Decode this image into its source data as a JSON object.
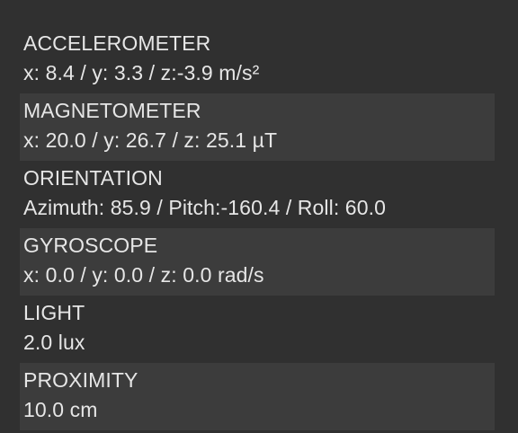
{
  "sensors": [
    {
      "name": "ACCELEROMETER",
      "value": "x: 8.4 / y: 3.3 / z:-3.9 m/s²"
    },
    {
      "name": "MAGNETOMETER",
      "value": "x: 20.0 / y: 26.7 / z: 25.1 µT"
    },
    {
      "name": "ORIENTATION",
      "value": "Azimuth: 85.9 / Pitch:-160.4 / Roll: 60.0"
    },
    {
      "name": "GYROSCOPE",
      "value": "x: 0.0 / y: 0.0 / z: 0.0 rad/s"
    },
    {
      "name": "LIGHT",
      "value": "2.0 lux"
    },
    {
      "name": "PROXIMITY",
      "value": "10.0 cm"
    }
  ],
  "colors": {
    "background": "#303030",
    "row_alt_background": "#3c3c3c",
    "text": "#e6e6e6"
  }
}
